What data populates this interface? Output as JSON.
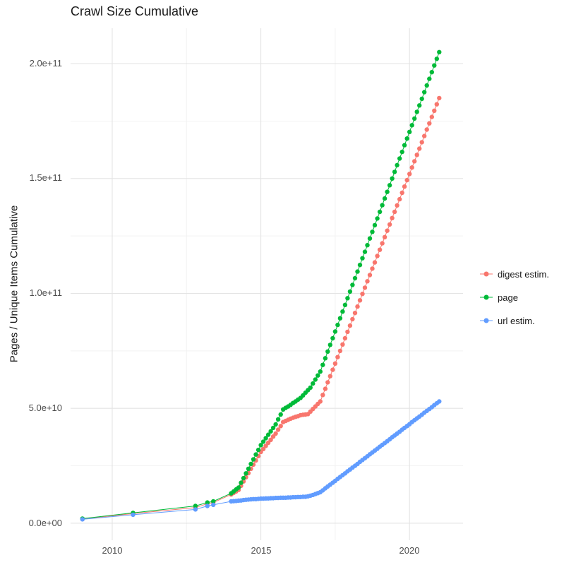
{
  "title": "Crawl Size Cumulative",
  "chart_data": {
    "type": "scatter",
    "title": "Crawl Size Cumulative",
    "xlabel": "",
    "ylabel": "Pages / Unique Items Cumulative",
    "value_unit": "1e9 pages (values stored in billions)",
    "x_ticks": [
      2010,
      2015,
      2020
    ],
    "x_tick_labels": [
      "2010",
      "2015",
      "2020"
    ],
    "y_ticks": {
      "values_billions": [
        0,
        50,
        100,
        150,
        200
      ],
      "labels": [
        "0.0e+00",
        "5.0e+10",
        "1.0e+11",
        "1.5e+11",
        "2.0e+11"
      ]
    },
    "grid": true,
    "grid_minor_y": [
      25,
      75,
      125,
      175
    ],
    "grid_minor_x": [
      2012.5,
      2017.5
    ],
    "xlim": [
      2008.6,
      2021.8
    ],
    "ylim_billions": [
      -7.4,
      215.4
    ],
    "legend_position": "right",
    "colors": {
      "grid_major": "#e4e4e4",
      "grid_minor": "#f2f2f2",
      "axis_text": "#4d4d4d",
      "title_text": "#1a1a1a"
    },
    "x": [
      2009,
      2010.7,
      2012.8,
      2013.2,
      2013.4,
      2014,
      2014.083,
      2014.167,
      2014.25,
      2014.333,
      2014.417,
      2014.5,
      2014.583,
      2014.667,
      2014.75,
      2014.833,
      2014.917,
      2015,
      2015.083,
      2015.167,
      2015.25,
      2015.333,
      2015.417,
      2015.5,
      2015.583,
      2015.667,
      2015.75,
      2015.833,
      2015.917,
      2016,
      2016.083,
      2016.167,
      2016.25,
      2016.333,
      2016.417,
      2016.5,
      2016.583,
      2016.667,
      2016.75,
      2016.833,
      2016.917,
      2017,
      2017.083,
      2017.167,
      2017.25,
      2017.333,
      2017.417,
      2017.5,
      2017.583,
      2017.667,
      2017.75,
      2017.833,
      2017.917,
      2018,
      2018.083,
      2018.167,
      2018.25,
      2018.333,
      2018.417,
      2018.5,
      2018.583,
      2018.667,
      2018.75,
      2018.833,
      2018.917,
      2019,
      2019.083,
      2019.167,
      2019.25,
      2019.333,
      2019.417,
      2019.5,
      2019.583,
      2019.667,
      2019.75,
      2019.833,
      2019.917,
      2020,
      2020.083,
      2020.167,
      2020.25,
      2020.333,
      2020.417,
      2020.5,
      2020.583,
      2020.667,
      2020.75,
      2020.833,
      2020.917,
      2021
    ],
    "series": [
      {
        "name": "digest estim.",
        "color": "#F8766D",
        "values": [
          1.8,
          4.2,
          6.8,
          8.5,
          9.0,
          12.5,
          13.2,
          13.8,
          14.5,
          16.3,
          18.2,
          20.0,
          21.8,
          23.7,
          25.5,
          27.3,
          29.2,
          31.0,
          32.3,
          33.7,
          35.0,
          36.3,
          37.7,
          39.0,
          40.7,
          42.3,
          44.0,
          44.5,
          45.0,
          45.5,
          45.9,
          46.3,
          46.6,
          47.0,
          47.2,
          47.3,
          47.5,
          48.6,
          49.7,
          50.8,
          51.9,
          53.0,
          55.8,
          58.5,
          61.3,
          64.0,
          66.8,
          69.5,
          72.3,
          75.0,
          77.8,
          80.5,
          83.3,
          86.0,
          88.8,
          91.5,
          94.3,
          97.0,
          99.8,
          102.5,
          105.3,
          108.0,
          110.8,
          113.5,
          116.3,
          119.0,
          121.8,
          124.5,
          127.3,
          130.0,
          132.8,
          135.5,
          138.3,
          141.0,
          143.8,
          146.5,
          149.3,
          152.0,
          154.8,
          157.5,
          160.3,
          163.0,
          165.8,
          168.5,
          171.3,
          174.0,
          176.8,
          179.5,
          182.3,
          185.0
        ]
      },
      {
        "name": "page",
        "color": "#00BA38",
        "values": [
          2.0,
          4.5,
          7.5,
          9.0,
          9.5,
          13.0,
          13.8,
          14.7,
          15.5,
          17.6,
          19.6,
          21.7,
          23.7,
          25.8,
          27.8,
          29.9,
          31.9,
          34.0,
          35.5,
          37.0,
          38.5,
          40.0,
          41.5,
          43.0,
          45.2,
          47.3,
          49.5,
          50.2,
          50.8,
          51.5,
          52.3,
          53.0,
          53.8,
          54.5,
          55.6,
          56.8,
          57.9,
          59.0,
          60.8,
          62.5,
          64.3,
          66.0,
          68.9,
          71.8,
          74.7,
          77.6,
          80.5,
          83.4,
          86.3,
          89.2,
          92.1,
          95.0,
          97.9,
          100.8,
          103.7,
          106.6,
          109.5,
          112.4,
          115.3,
          118.1,
          121.0,
          123.9,
          126.8,
          129.7,
          132.6,
          135.5,
          138.4,
          141.3,
          144.2,
          147.1,
          150.0,
          152.9,
          155.8,
          158.7,
          161.6,
          164.5,
          167.4,
          170.3,
          173.2,
          176.1,
          179.0,
          181.8,
          184.7,
          187.6,
          190.5,
          193.4,
          196.3,
          199.2,
          202.1,
          205.0
        ]
      },
      {
        "name": "url estim.",
        "color": "#619CFF",
        "values": [
          1.7,
          3.7,
          6.0,
          7.5,
          8.0,
          9.5,
          9.6,
          9.7,
          9.8,
          9.9,
          10.1,
          10.2,
          10.3,
          10.4,
          10.5,
          10.5,
          10.6,
          10.7,
          10.7,
          10.8,
          10.8,
          10.9,
          10.9,
          11.0,
          11.0,
          11.1,
          11.1,
          11.1,
          11.2,
          11.2,
          11.3,
          11.3,
          11.4,
          11.4,
          11.5,
          11.5,
          11.7,
          12.0,
          12.3,
          12.7,
          13.1,
          13.5,
          14.3,
          15.2,
          16.0,
          16.8,
          17.6,
          18.4,
          19.3,
          20.1,
          20.9,
          21.7,
          22.6,
          23.4,
          24.2,
          25.0,
          25.8,
          26.7,
          27.5,
          28.3,
          29.1,
          30.0,
          30.8,
          31.6,
          32.4,
          33.3,
          34.1,
          34.9,
          35.7,
          36.5,
          37.4,
          38.2,
          39.0,
          39.8,
          40.7,
          41.5,
          42.3,
          43.1,
          44.0,
          44.8,
          45.6,
          46.4,
          47.2,
          48.1,
          48.9,
          49.7,
          50.5,
          51.4,
          52.2,
          53.0
        ]
      }
    ]
  }
}
